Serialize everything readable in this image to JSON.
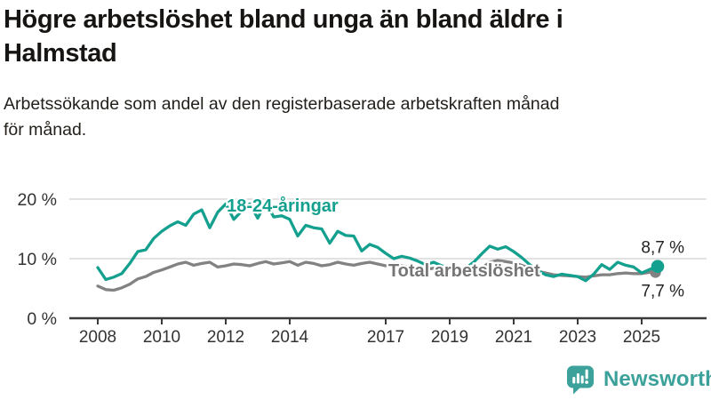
{
  "header": {
    "title_lines": [
      "Högre arbetslöshet bland unga än bland äldre i",
      "Halmstad"
    ],
    "subtitle_lines": [
      "Arbetssökande som andel av den registerbaserade arbetskraften månad",
      "för månad."
    ]
  },
  "chart_data": {
    "type": "line",
    "title": "Högre arbetslöshet bland unga än bland äldre i Halmstad",
    "subtitle": "Arbetssökande som andel av den registerbaserade arbetskraften månad för månad.",
    "unit": "%",
    "x_start": 2008.0,
    "x_step": 0.25,
    "x_end": 2025.5,
    "ylim": [
      0,
      22
    ],
    "grid": "horizontal",
    "legend_position": "inline-labels",
    "y_ticks": [
      {
        "value": 0,
        "label": "0 %"
      },
      {
        "value": 10,
        "label": "10 %"
      },
      {
        "value": 20,
        "label": "20 %"
      }
    ],
    "x_ticks": [
      {
        "year": 2008,
        "label": "2008"
      },
      {
        "year": 2010,
        "label": "2010"
      },
      {
        "year": 2012,
        "label": "2012"
      },
      {
        "year": 2014,
        "label": "2014"
      },
      {
        "year": 2017,
        "label": "2017"
      },
      {
        "year": 2019,
        "label": "2019"
      },
      {
        "year": 2021,
        "label": "2021"
      },
      {
        "year": 2023,
        "label": "2023"
      },
      {
        "year": 2025,
        "label": "2025"
      }
    ],
    "series": [
      {
        "name": "18-24-åringar",
        "color": "#14a08e",
        "label_color": "#14a08e",
        "label_x": 2012.03,
        "label_y": 17.9,
        "end_label": "8,7 %",
        "end_value": 8.7,
        "values": [
          8.5,
          6.5,
          6.9,
          7.5,
          9.2,
          11.2,
          11.5,
          13.4,
          14.6,
          15.5,
          16.2,
          15.6,
          17.5,
          18.2,
          15.2,
          17.8,
          19.2,
          16.6,
          18.0,
          19.2,
          16.8,
          19.4,
          17.0,
          17.2,
          16.6,
          13.8,
          15.6,
          15.2,
          15.0,
          12.6,
          14.6,
          13.9,
          13.8,
          11.3,
          12.4,
          11.9,
          10.9,
          10.0,
          10.4,
          10.1,
          9.6,
          9.0,
          9.4,
          8.8,
          8.6,
          8.3,
          8.4,
          9.4,
          10.8,
          12.1,
          11.6,
          12.0,
          11.2,
          10.2,
          9.0,
          8.0,
          7.3,
          7.0,
          7.4,
          7.2,
          7.0,
          6.3,
          7.4,
          9.0,
          8.2,
          9.4,
          8.9,
          8.6,
          7.6,
          8.2,
          8.7
        ]
      },
      {
        "name": "Total arbetslöshet",
        "color": "#828282",
        "label_color": "#757575",
        "label_x": 2017.08,
        "label_y": 7.0,
        "end_label": "7,7 %",
        "end_value": 7.7,
        "values": [
          5.4,
          4.8,
          4.7,
          5.1,
          5.7,
          6.6,
          7.0,
          7.7,
          8.1,
          8.6,
          9.1,
          9.4,
          8.9,
          9.2,
          9.4,
          8.6,
          8.8,
          9.1,
          9.0,
          8.8,
          9.2,
          9.5,
          9.1,
          9.3,
          9.5,
          8.9,
          9.4,
          9.2,
          8.8,
          9.0,
          9.4,
          9.1,
          8.9,
          9.2,
          9.4,
          9.1,
          8.8,
          8.6,
          8.8,
          8.6,
          8.4,
          8.2,
          8.4,
          8.2,
          8.1,
          8.0,
          8.1,
          8.0,
          8.4,
          9.4,
          9.7,
          9.5,
          9.3,
          8.9,
          8.4,
          7.9,
          7.6,
          7.3,
          7.2,
          7.1,
          7.0,
          6.9,
          7.1,
          7.3,
          7.3,
          7.5,
          7.6,
          7.5,
          7.5,
          7.7,
          7.7
        ]
      }
    ]
  },
  "footer": {
    "brand": "Newsworthy",
    "brand_color": "#3ba19a",
    "logo_icon": "bar-chart-speech-bubble"
  }
}
